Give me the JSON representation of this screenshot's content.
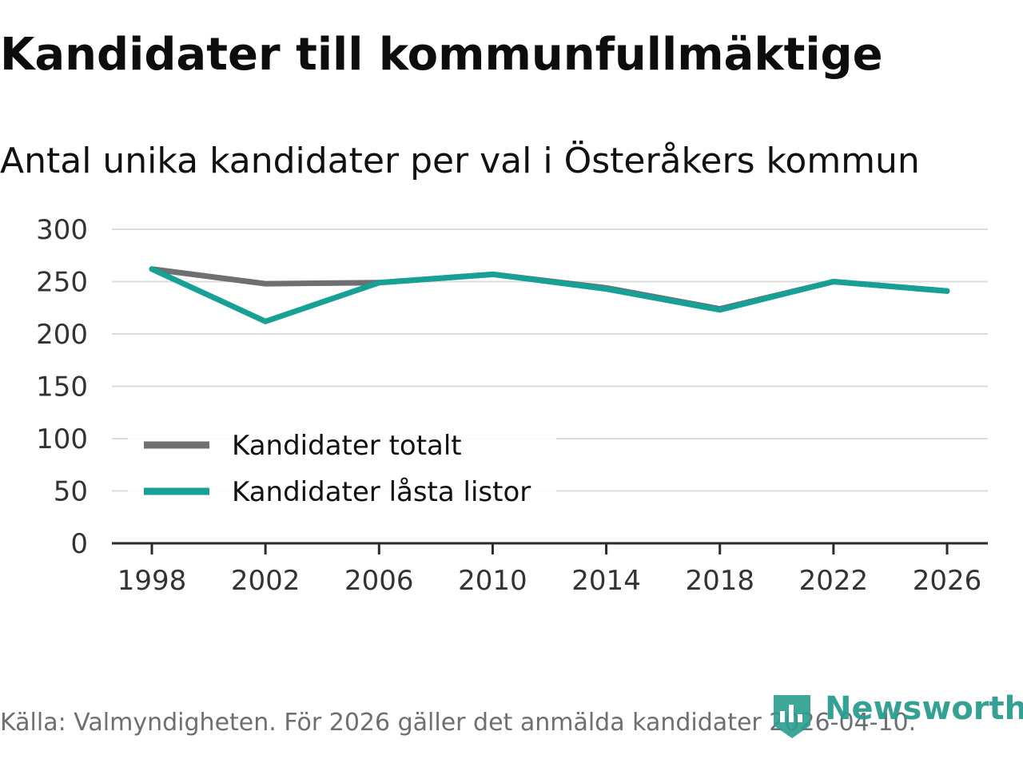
{
  "header": {
    "title": "Kandidater till kommunfullmäktige",
    "subtitle": "Antal unika kandidater per val i Österåkers kommun"
  },
  "footer": {
    "source": "Källa: Valmyndigheten. För 2026 gäller det anmälda kandidater 2026-04-10."
  },
  "brand": {
    "name": "Newsworthy",
    "icon": "bar-chart-flag-icon",
    "color": "#2a9d8f"
  },
  "chart_data": {
    "type": "line",
    "title": "Kandidater till kommunfullmäktige",
    "subtitle": "Antal unika kandidater per val i Österåkers kommun",
    "xlabel": "",
    "ylabel": "",
    "x": [
      1998,
      2002,
      2006,
      2010,
      2014,
      2018,
      2022,
      2026
    ],
    "x_ticks": [
      "1998",
      "2002",
      "2006",
      "2010",
      "2014",
      "2018",
      "2022",
      "2026"
    ],
    "y_ticks": [
      0,
      50,
      100,
      150,
      200,
      250,
      300
    ],
    "ylim": [
      0,
      300
    ],
    "xlim": [
      1998,
      2026
    ],
    "grid": true,
    "legend_position": "lower-left",
    "series": [
      {
        "name": "Kandidater totalt",
        "color": "#6e6e73",
        "values": [
          262,
          248,
          249,
          257,
          244,
          224,
          250,
          241
        ]
      },
      {
        "name": "Kandidater låsta listor",
        "color": "#17a196",
        "values": [
          262,
          212,
          249,
          257,
          243,
          223,
          250,
          241
        ]
      }
    ]
  }
}
